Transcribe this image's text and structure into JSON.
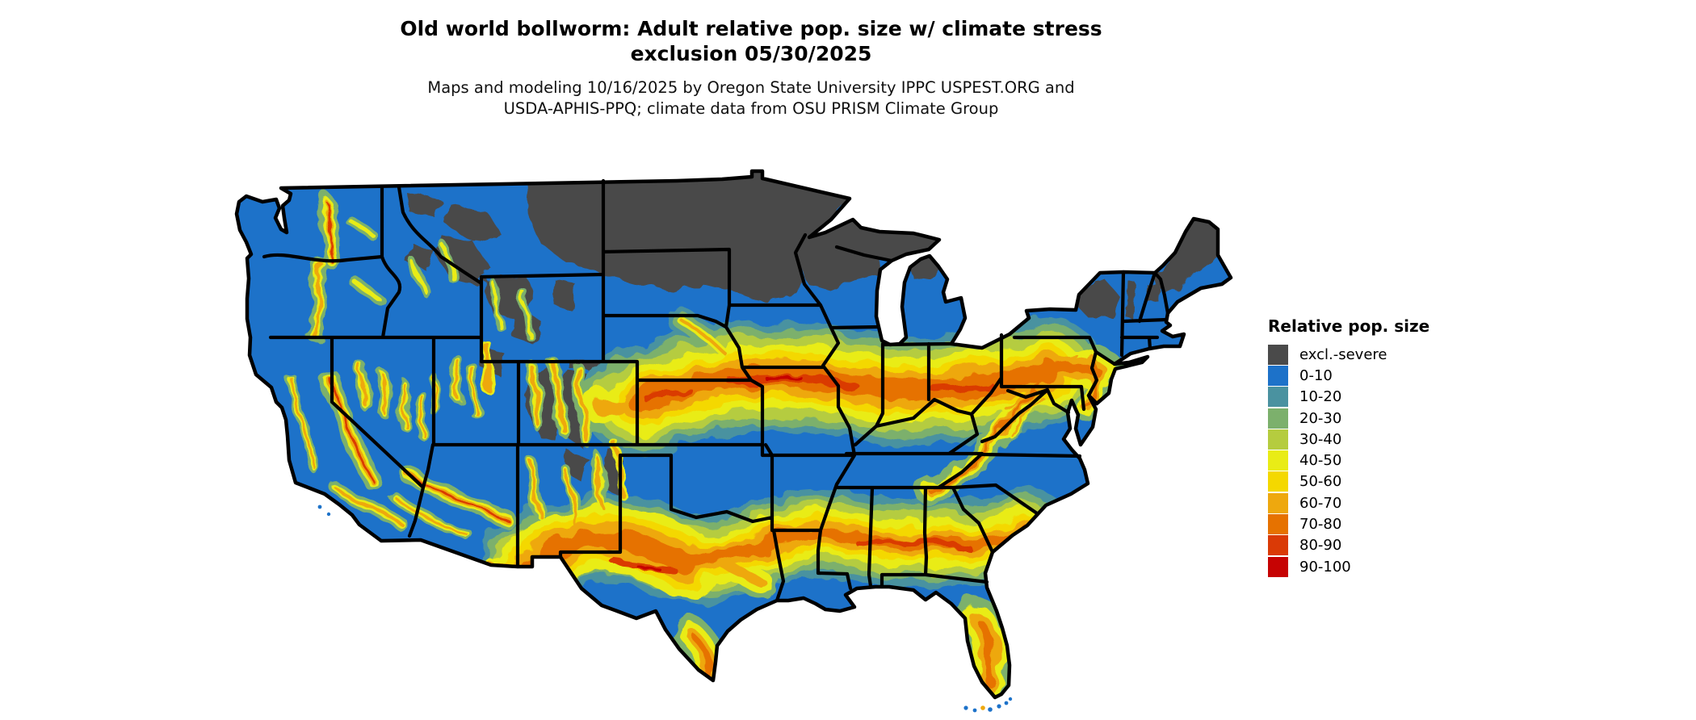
{
  "title": {
    "line1": "Old world bollworm: Adult relative pop. size w/ climate stress",
    "line2": "exclusion 05/30/2025"
  },
  "subtitle": {
    "line1": "Maps and modeling 10/16/2025 by Oregon State University IPPC USPEST.ORG and",
    "line2": "USDA-APHIS-PPQ; climate data from OSU PRISM Climate Group"
  },
  "legend": {
    "title": "Relative pop. size",
    "items": [
      {
        "key": "excl",
        "label": "excl.-severe",
        "color": "#4a4a4a"
      },
      {
        "key": "b0",
        "label": "0-10",
        "color": "#1d72c9"
      },
      {
        "key": "b10",
        "label": "10-20",
        "color": "#4a92a0"
      },
      {
        "key": "b20",
        "label": "20-30",
        "color": "#7cb06c"
      },
      {
        "key": "b30",
        "label": "30-40",
        "color": "#b5cc3f"
      },
      {
        "key": "b40",
        "label": "40-50",
        "color": "#e9ec16"
      },
      {
        "key": "b50",
        "label": "50-60",
        "color": "#f4d800"
      },
      {
        "key": "b60",
        "label": "60-70",
        "color": "#eea80e"
      },
      {
        "key": "b70",
        "label": "70-80",
        "color": "#e67200"
      },
      {
        "key": "b80",
        "label": "80-90",
        "color": "#da3a06"
      },
      {
        "key": "b90",
        "label": "90-100",
        "color": "#c60303"
      }
    ]
  },
  "map": {
    "outline_color": "#000000",
    "background": "#ffffff"
  }
}
